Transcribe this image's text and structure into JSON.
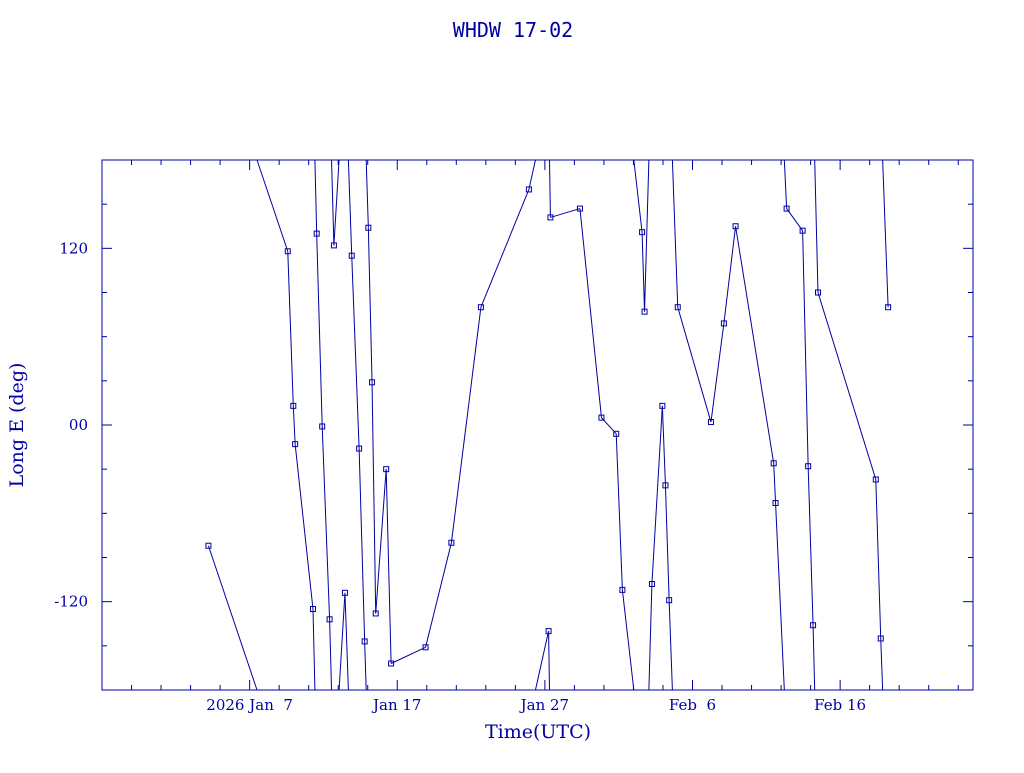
{
  "colors": {
    "ink": "#0000a0",
    "background": "#ffffff"
  },
  "chart_data": {
    "type": "line",
    "title": "WHDW 17-02",
    "xlabel": "Time(UTC)",
    "ylabel": "Long E (deg)",
    "xlim": [
      "2025-12-28",
      "2026-02-25"
    ],
    "ylim": [
      -180,
      180
    ],
    "wrap_range": [
      -180,
      180
    ],
    "x_ticks": [
      {
        "date": "2026-01-07",
        "label": "2026 Jan  7"
      },
      {
        "date": "2026-01-17",
        "label": "Jan 17"
      },
      {
        "date": "2026-01-27",
        "label": "Jan 27"
      },
      {
        "date": "2026-02-06",
        "label": "Feb  6"
      },
      {
        "date": "2026-02-16",
        "label": "Feb 16"
      }
    ],
    "y_ticks": [
      {
        "value": 120,
        "label": "120"
      },
      {
        "value": 0,
        "label": "00"
      },
      {
        "value": -120,
        "label": "-120"
      }
    ],
    "grid": false,
    "markers": "square",
    "points": [
      {
        "t": "2026-01-04T05:00",
        "lon": -82
      },
      {
        "t": "2026-01-09T14:00",
        "lon": 118
      },
      {
        "t": "2026-01-09T23:00",
        "lon": 13
      },
      {
        "t": "2026-01-10T02:00",
        "lon": -13
      },
      {
        "t": "2026-01-11T07:00",
        "lon": -125
      },
      {
        "t": "2026-01-11T13:00",
        "lon": 130
      },
      {
        "t": "2026-01-11T22:00",
        "lon": -1
      },
      {
        "t": "2026-01-12T10:00",
        "lon": -132
      },
      {
        "t": "2026-01-12T17:00",
        "lon": 122
      },
      {
        "t": "2026-01-13T11:00",
        "lon": -114
      },
      {
        "t": "2026-01-13T22:00",
        "lon": 115
      },
      {
        "t": "2026-01-14T10:00",
        "lon": -16
      },
      {
        "t": "2026-01-14T19:00",
        "lon": -147
      },
      {
        "t": "2026-01-15T01:00",
        "lon": 134
      },
      {
        "t": "2026-01-15T07:00",
        "lon": 29
      },
      {
        "t": "2026-01-15T13:00",
        "lon": -128
      },
      {
        "t": "2026-01-16T06:00",
        "lon": -30
      },
      {
        "t": "2026-01-16T14:00",
        "lon": -162
      },
      {
        "t": "2026-01-18T22:00",
        "lon": -151
      },
      {
        "t": "2026-01-20T16:00",
        "lon": -80
      },
      {
        "t": "2026-01-22T16:00",
        "lon": 80
      },
      {
        "t": "2026-01-25T22:00",
        "lon": 160
      },
      {
        "t": "2026-01-27T06:00",
        "lon": -140
      },
      {
        "t": "2026-01-27T09:00",
        "lon": 141
      },
      {
        "t": "2026-01-29T09:00",
        "lon": 147
      },
      {
        "t": "2026-01-30T20:00",
        "lon": 5
      },
      {
        "t": "2026-01-31T20:00",
        "lon": -6
      },
      {
        "t": "2026-02-01T06:00",
        "lon": -112
      },
      {
        "t": "2026-02-02T14:00",
        "lon": 131
      },
      {
        "t": "2026-02-02T18:00",
        "lon": 77
      },
      {
        "t": "2026-02-03T06:00",
        "lon": -108
      },
      {
        "t": "2026-02-03T23:00",
        "lon": 13
      },
      {
        "t": "2026-02-04T04:00",
        "lon": -41
      },
      {
        "t": "2026-02-04T10:00",
        "lon": -119
      },
      {
        "t": "2026-02-05T00:00",
        "lon": 80
      },
      {
        "t": "2026-02-07T06:00",
        "lon": 2
      },
      {
        "t": "2026-02-08T03:00",
        "lon": 69
      },
      {
        "t": "2026-02-08T22:00",
        "lon": 135
      },
      {
        "t": "2026-02-11T12:00",
        "lon": -26
      },
      {
        "t": "2026-02-11T15:00",
        "lon": -53
      },
      {
        "t": "2026-02-12T09:00",
        "lon": 147
      },
      {
        "t": "2026-02-13T11:00",
        "lon": 132
      },
      {
        "t": "2026-02-13T20:00",
        "lon": -28
      },
      {
        "t": "2026-02-14T04:00",
        "lon": -136
      },
      {
        "t": "2026-02-14T12:00",
        "lon": 90
      },
      {
        "t": "2026-02-18T10:00",
        "lon": -37
      },
      {
        "t": "2026-02-18T18:00",
        "lon": -145
      },
      {
        "t": "2026-02-19T06:00",
        "lon": 80
      }
    ]
  }
}
